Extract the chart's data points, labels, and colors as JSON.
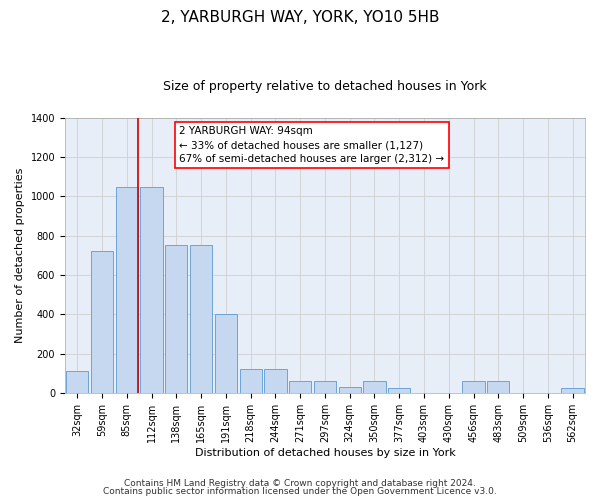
{
  "title": "2, YARBURGH WAY, YORK, YO10 5HB",
  "subtitle": "Size of property relative to detached houses in York",
  "xlabel": "Distribution of detached houses by size in York",
  "ylabel": "Number of detached properties",
  "footer1": "Contains HM Land Registry data © Crown copyright and database right 2024.",
  "footer2": "Contains public sector information licensed under the Open Government Licence v3.0.",
  "annotation_line1": "2 YARBURGH WAY: 94sqm",
  "annotation_line2": "← 33% of detached houses are smaller (1,127)",
  "annotation_line3": "67% of semi-detached houses are larger (2,312) →",
  "bar_values": [
    110,
    720,
    1050,
    1050,
    750,
    750,
    400,
    120,
    120,
    60,
    60,
    30,
    60,
    25,
    0,
    0,
    60,
    60,
    0,
    0,
    25
  ],
  "categories": [
    "32sqm",
    "59sqm",
    "85sqm",
    "112sqm",
    "138sqm",
    "165sqm",
    "191sqm",
    "218sqm",
    "244sqm",
    "271sqm",
    "297sqm",
    "324sqm",
    "350sqm",
    "377sqm",
    "403sqm",
    "430sqm",
    "456sqm",
    "483sqm",
    "509sqm",
    "536sqm",
    "562sqm"
  ],
  "bar_color": "#c5d8f0",
  "bar_edge_color": "#5b9bd5",
  "grid_color": "#d0d0d0",
  "background_color": "#e8eef7",
  "vline_color": "#cc0000",
  "vline_x": 2.45,
  "ylim": [
    0,
    1400
  ],
  "yticks": [
    0,
    200,
    400,
    600,
    800,
    1000,
    1200,
    1400
  ],
  "title_fontsize": 11,
  "subtitle_fontsize": 9,
  "label_fontsize": 8,
  "tick_fontsize": 7,
  "footer_fontsize": 6.5,
  "annotation_fontsize": 7.5
}
